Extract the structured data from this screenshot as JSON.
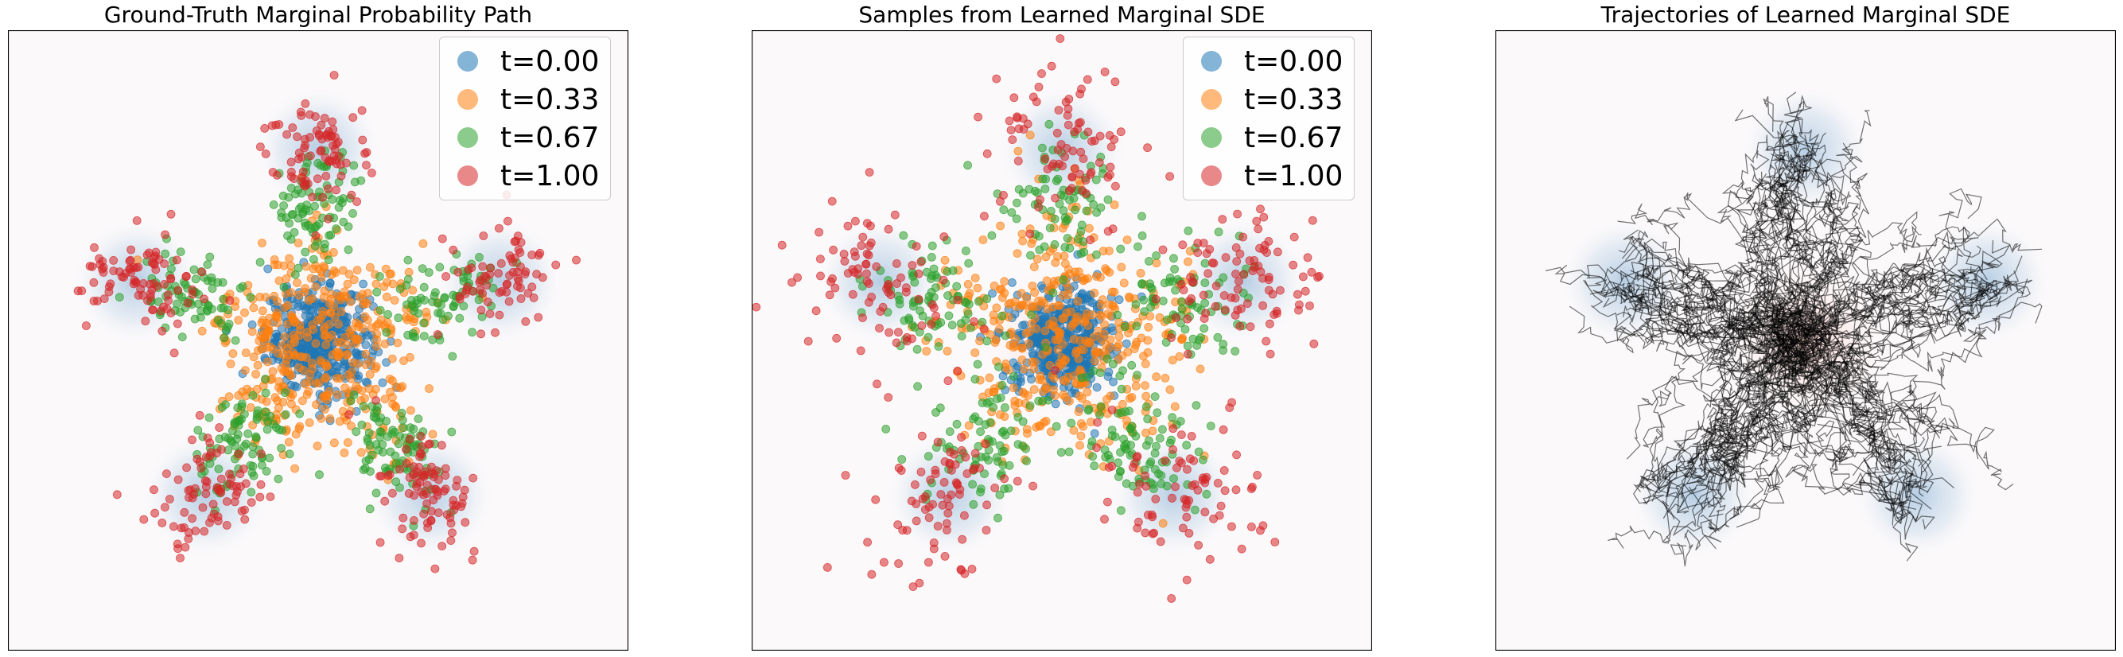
{
  "chart_data": [
    {
      "type": "scatter",
      "title": "Ground-Truth Marginal Probability Path",
      "legend_placement": "top-right",
      "xlim": [
        -6.5,
        6.5
      ],
      "ylim": [
        -6.5,
        6.5
      ],
      "axes_ticks": false,
      "grid": false,
      "background": "Gaussian density: source at origin (red tint), 5 target modes at radius 4 (blue glow)",
      "target_mode_angles_deg": [
        90,
        18,
        -54,
        -126,
        162
      ],
      "target_radius": 4.0,
      "series": [
        {
          "name": "t=0.00",
          "color": "#1f77b4",
          "center_radius": 0.0,
          "spread": 0.55,
          "n": 420
        },
        {
          "name": "t=0.33",
          "color": "#ff7f0e",
          "center_radius": 1.3,
          "spread": 0.55,
          "n": 420
        },
        {
          "name": "t=0.67",
          "color": "#2ca02c",
          "center_radius": 2.7,
          "spread": 0.45,
          "n": 420
        },
        {
          "name": "t=1.00",
          "color": "#d62728",
          "center_radius": 4.0,
          "spread": 0.5,
          "n": 420
        }
      ]
    },
    {
      "type": "scatter",
      "title": "Samples from Learned Marginal SDE",
      "legend_placement": "top-right",
      "xlim": [
        -6.5,
        6.5
      ],
      "ylim": [
        -6.5,
        6.5
      ],
      "axes_ticks": false,
      "grid": false,
      "target_mode_angles_deg": [
        90,
        18,
        -54,
        -126,
        162
      ],
      "target_radius": 4.0,
      "series": [
        {
          "name": "t=0.00",
          "color": "#1f77b4",
          "center_radius": 0.0,
          "spread": 0.55,
          "n": 420
        },
        {
          "name": "t=0.33",
          "color": "#ff7f0e",
          "center_radius": 1.4,
          "spread": 0.65,
          "n": 420
        },
        {
          "name": "t=0.67",
          "color": "#2ca02c",
          "center_radius": 2.7,
          "spread": 0.6,
          "n": 420
        },
        {
          "name": "t=1.00",
          "color": "#d62728",
          "center_radius": 4.1,
          "spread": 0.75,
          "n": 420
        }
      ]
    },
    {
      "type": "line",
      "title": "Trajectories of Learned Marginal SDE",
      "xlim": [
        -6.5,
        6.5
      ],
      "ylim": [
        -6.5,
        6.5
      ],
      "axes_ticks": false,
      "grid": false,
      "series_color": "#000000",
      "n_trajectories": 150,
      "target_mode_angles_deg": [
        90,
        18,
        -54,
        -126,
        162
      ],
      "target_radius": 4.0
    }
  ]
}
